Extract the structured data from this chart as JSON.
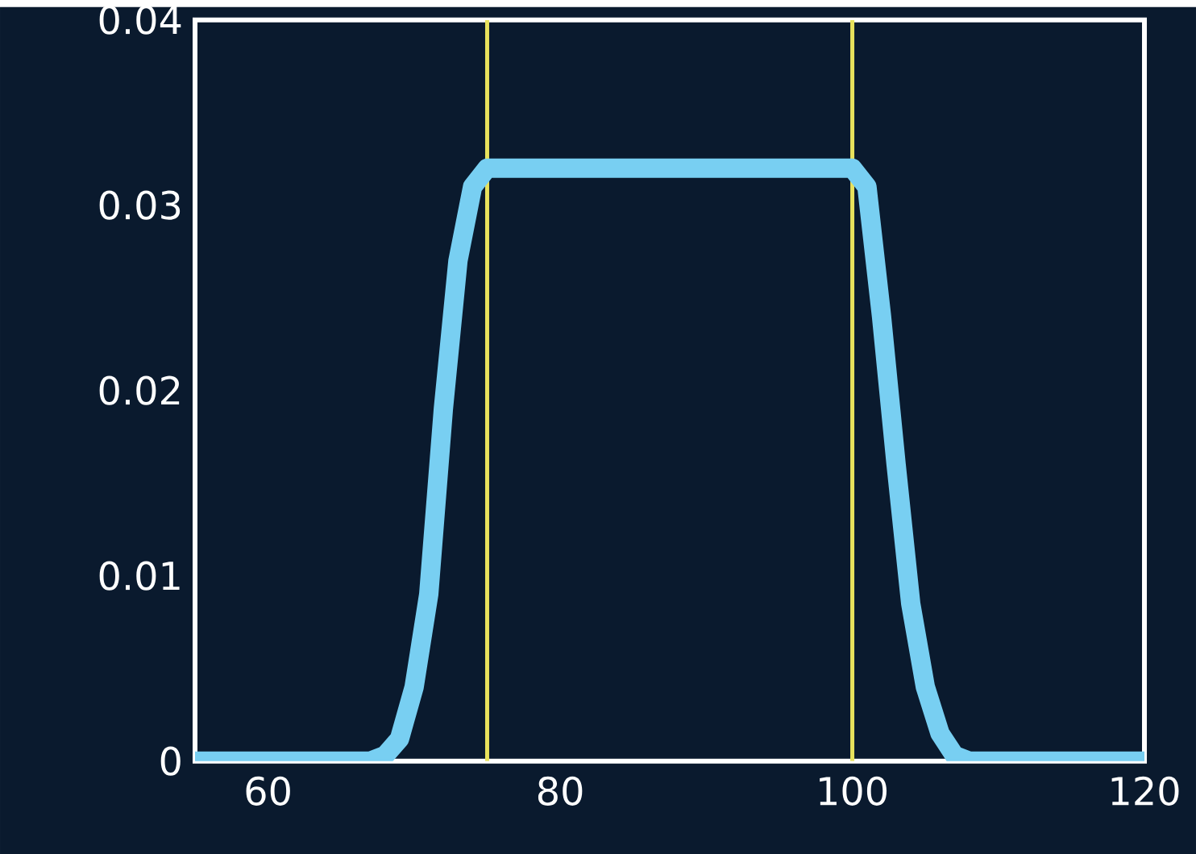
{
  "chart_data": {
    "type": "line",
    "x": [
      55,
      60,
      65,
      67,
      68,
      69,
      70,
      71,
      72,
      73,
      74,
      75,
      80,
      85,
      90,
      95,
      100,
      101,
      102,
      103,
      104,
      105,
      106,
      107,
      108,
      110,
      115,
      120
    ],
    "series": [
      {
        "color": "#78cff2",
        "values": [
          0,
          0,
          0,
          0,
          0.0003,
          0.0012,
          0.004,
          0.009,
          0.019,
          0.027,
          0.031,
          0.032,
          0.032,
          0.032,
          0.032,
          0.032,
          0.032,
          0.031,
          0.024,
          0.016,
          0.0085,
          0.004,
          0.0015,
          0.0003,
          0,
          0,
          0,
          0
        ]
      }
    ],
    "xlim": [
      55,
      120
    ],
    "ylim": [
      0,
      0.04
    ],
    "xticks": [
      60,
      80,
      100,
      120
    ],
    "yticks": [
      0,
      0.01,
      0.02,
      0.03,
      0.04
    ],
    "ref_lines": [
      {
        "axis": "x",
        "value": 75,
        "color": "#e8e25c"
      },
      {
        "axis": "x",
        "value": 100,
        "color": "#e8e25c"
      }
    ],
    "marker": "none",
    "line_style": "solid"
  }
}
